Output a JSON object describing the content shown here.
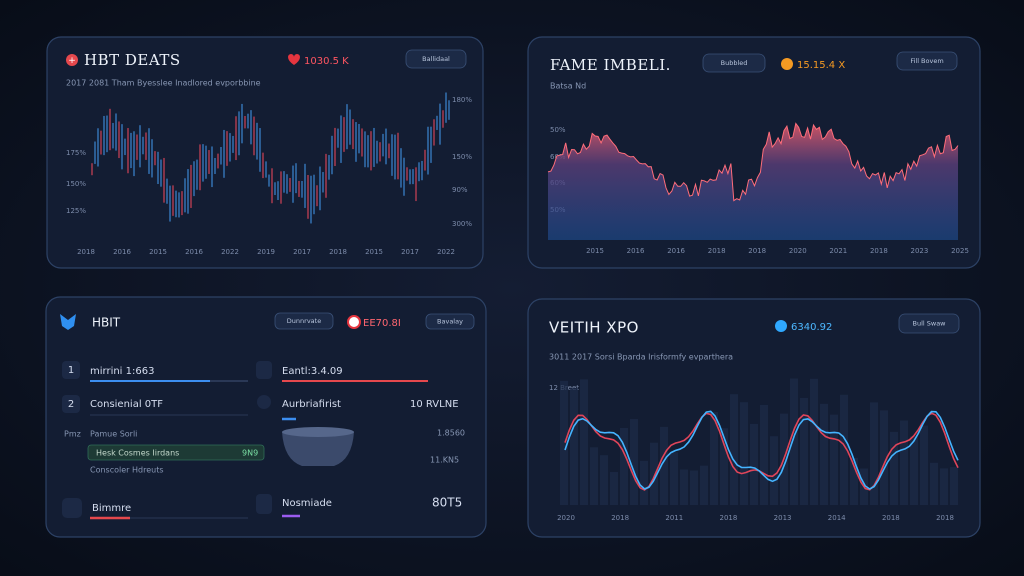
{
  "panels": [
    {
      "title": "HBT DEATS",
      "badge": "1030.5 K",
      "button": "Ballidaal",
      "subtitle": "2017 2081 Tham Byesslee Inadlored evporbbine",
      "y_left": [
        "175%",
        "150%",
        "125%"
      ],
      "y_right": [
        "180%",
        "150%",
        "90%",
        "300%"
      ],
      "x_labels": [
        "2018",
        "2016",
        "2015",
        "2016",
        "2022",
        "2019",
        "2017",
        "2018",
        "2015",
        "2017",
        "2022"
      ]
    },
    {
      "title": "FAME IMBELI.",
      "subtitle": "Batsa Nd",
      "button": "Bubbled",
      "badge": "15.15.4 X",
      "button_2": "Fill Bovem",
      "y_left": [
        "50%",
        "60%",
        "60%",
        "50%"
      ],
      "x_labels": [
        "2015",
        "2016",
        "2016",
        "2018",
        "2018",
        "2020",
        "2021",
        "2018",
        "2023",
        "2025"
      ]
    },
    {
      "title": "HBIT",
      "button": "Dunnrvate",
      "badge": "EE70.8I",
      "button_2": "Bavalay",
      "rows": [
        {
          "index": "1",
          "label": "mirrini 1:663",
          "right_label": "Eantl:3.4.09"
        },
        {
          "index": "2",
          "label": "Consienial 0TF",
          "right_label": "Aurbriafirist",
          "right_value": "10 RVLNE"
        },
        {
          "index": "Pmz",
          "label": "Pamue Sorli",
          "right_value": "1.8560"
        },
        {
          "label": "Bimmre",
          "right_label": "Nosmiade",
          "right_value": "80T5"
        }
      ],
      "highlight": {
        "label": "Hesk Cosmes Iirdans",
        "value": "9N9"
      },
      "note": "Conscoler Hdreuts",
      "note_value": "11.KN5"
    },
    {
      "title": "VEITIH XPO",
      "badge": "6340.92",
      "button": "Bull Swaw",
      "subtitle": "3011 2017 Sorsi Bparda Irisformfy evparthera",
      "y_label": "12 Breet",
      "x_labels": [
        "2020",
        "2018",
        "2011",
        "2018",
        "2013",
        "2014",
        "2018",
        "2018"
      ]
    }
  ]
}
